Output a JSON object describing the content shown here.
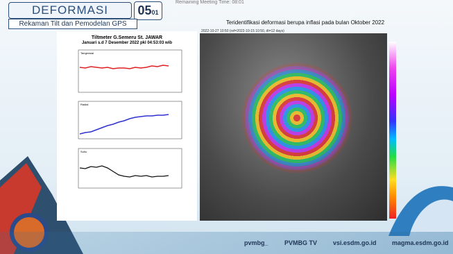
{
  "header": {
    "title": "DEFORMASI",
    "slide_number": "05",
    "slide_sub": "01",
    "subtitle": "Rekaman Tilt dan Pemodelan GPS"
  },
  "meeting": {
    "timer": "Remaining Meeting Time: 08:01"
  },
  "tiltmeter": {
    "title": "Tiltmeter G.Semeru St. JAWAR",
    "period": "Januari  s.d 7 Desember  2022 pkl 04:53:03 wib",
    "panels": [
      "Tangensial",
      "Radial",
      "Suhu"
    ]
  },
  "insar": {
    "title": "Teridentifikasi deformasi berupa inflasi pada bulan Oktober 2022",
    "subtitle": "2022-10-27 10:50 (ref=2022-10-15 10:50, dt=12 days)"
  },
  "footer": {
    "social": "pvmbg_",
    "tv": "PVMBG TV",
    "site1": "vsi.esdm.go.id",
    "site2": "magma.esdm.go.id"
  }
}
